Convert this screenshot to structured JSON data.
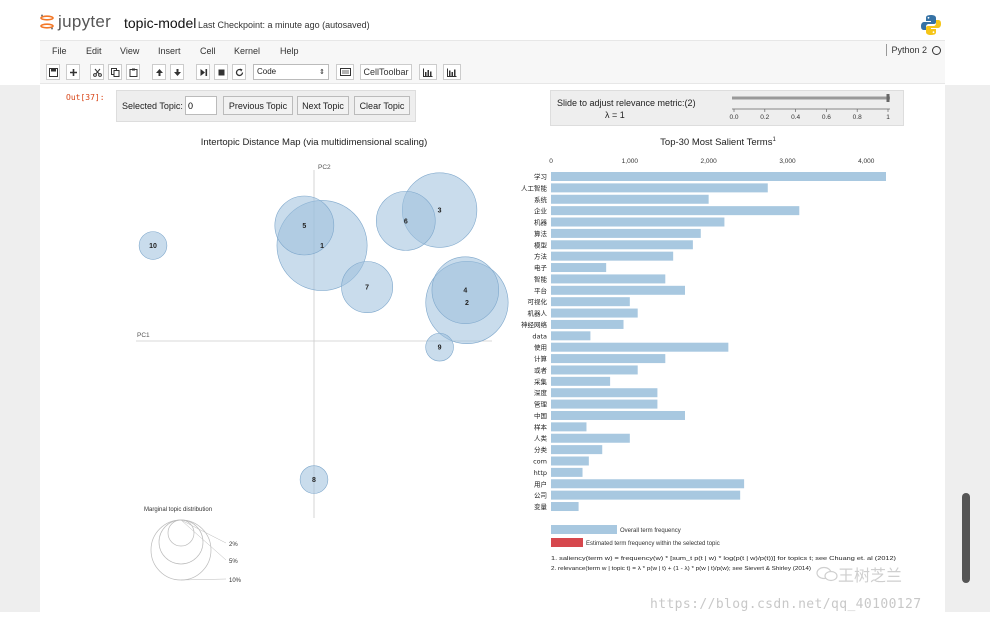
{
  "header": {
    "logo_text": "jupyter",
    "notebook_title": "topic-model",
    "checkpoint": "Last Checkpoint: a minute ago (autosaved)"
  },
  "menubar": {
    "items": [
      "File",
      "Edit",
      "View",
      "Insert",
      "Cell",
      "Kernel",
      "Help"
    ],
    "kernel_name": "Python 2"
  },
  "toolbar": {
    "cell_type": "Code",
    "celltoolbar_label": "CellToolbar"
  },
  "cell": {
    "out_prompt": "Out[37]:"
  },
  "controls": {
    "selected_topic_label": "Selected Topic:",
    "selected_topic_value": "0",
    "previous_topic": "Previous Topic",
    "next_topic": "Next Topic",
    "clear_topic": "Clear Topic",
    "slide_label": "Slide to adjust relevance metric:(2)",
    "lambda_label": "λ = 1",
    "slider_ticks": [
      "0.0",
      "0.2",
      "0.4",
      "0.6",
      "0.8",
      "1"
    ],
    "slider_value": 1
  },
  "chart_data": [
    {
      "type": "scatter",
      "title": "Intertopic Distance Map (via multidimensional scaling)",
      "x_axis_label": "PC1",
      "y_axis_label": "PC2",
      "topics": [
        {
          "label": "1",
          "pc1": 0.05,
          "pc2": 0.62,
          "size": 9
        },
        {
          "label": "2",
          "pc1": 0.95,
          "pc2": 0.25,
          "size": 8
        },
        {
          "label": "3",
          "pc1": 0.78,
          "pc2": 0.85,
          "size": 7
        },
        {
          "label": "4",
          "pc1": 0.94,
          "pc2": 0.33,
          "size": 6
        },
        {
          "label": "5",
          "pc1": -0.06,
          "pc2": 0.75,
          "size": 5
        },
        {
          "label": "6",
          "pc1": 0.57,
          "pc2": 0.78,
          "size": 5
        },
        {
          "label": "7",
          "pc1": 0.33,
          "pc2": 0.35,
          "size": 4
        },
        {
          "label": "8",
          "pc1": 0.0,
          "pc2": -0.9,
          "size": 1
        },
        {
          "label": "9",
          "pc1": 0.78,
          "pc2": -0.04,
          "size": 1
        },
        {
          "label": "10",
          "pc1": -1.0,
          "pc2": 0.62,
          "size": 1
        }
      ],
      "legend": {
        "title": "Marginal topic distribution",
        "entries": [
          "2%",
          "5%",
          "10%"
        ]
      }
    },
    {
      "type": "bar",
      "title": "Top-30 Most Salient Terms",
      "title_superscript": "1",
      "x_ticks": [
        "0",
        "1,000",
        "2,000",
        "3,000",
        "4,000"
      ],
      "xlim": [
        0,
        4300
      ],
      "terms": [
        "学习",
        "人工智能",
        "系统",
        "企业",
        "机器",
        "算法",
        "模型",
        "方法",
        "电子",
        "智能",
        "平台",
        "可视化",
        "机器人",
        "神经网络",
        "data",
        "使用",
        "计算",
        "或者",
        "采集",
        "深度",
        "管理",
        "中国",
        "样本",
        "人类",
        "分类",
        "com",
        "http",
        "用户",
        "公司",
        "变量"
      ],
      "values": [
        4250,
        2750,
        2000,
        3150,
        2200,
        1900,
        1800,
        1550,
        700,
        1450,
        1700,
        1000,
        1100,
        920,
        500,
        2250,
        1450,
        1100,
        750,
        1350,
        1350,
        1700,
        450,
        1000,
        650,
        480,
        400,
        2450,
        2400,
        350
      ],
      "legend": [
        {
          "label": "Overall term frequency",
          "color": "#a8c8e0"
        },
        {
          "label": "Estimated term frequency within the selected topic",
          "color": "#d6474d"
        }
      ],
      "footnotes": [
        "1. saliency(term w) = frequency(w) * [sum_t p(t | w) * log(p(t | w)/p(t))] for topics t; see Chuang et. al (2012)",
        "2. relevance(term w | topic t) = λ * p(w | t) + (1 - λ) * p(w | t)/p(w); see Sievert & Shirley (2014)"
      ]
    }
  ],
  "watermark": "https://blog.csdn.net/qq_40100127",
  "wechat_watermark": "王树芝兰",
  "colors": {
    "bar_blue": "#a8c8e0",
    "circle_fill": "#9dbfdd",
    "highlight_red": "#d6474d",
    "prompt_red": "#d84315"
  }
}
